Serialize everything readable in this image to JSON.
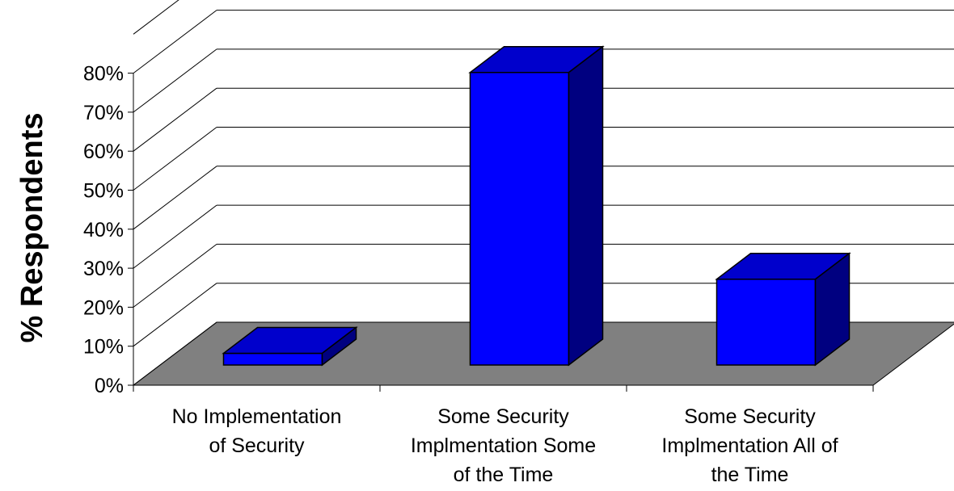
{
  "chart_data": {
    "type": "bar",
    "title": "",
    "xlabel": "",
    "ylabel": "% Respondents",
    "ylim": [
      0,
      80
    ],
    "y_ticks": [
      "0%",
      "10%",
      "20%",
      "30%",
      "40%",
      "50%",
      "60%",
      "70%",
      "80%"
    ],
    "categories": [
      [
        "No Implementation",
        "of Security"
      ],
      [
        "Some Security",
        "Implmentation Some",
        "of the Time"
      ],
      [
        "Some Security",
        "Implmentation All of",
        "the Time"
      ]
    ],
    "values": [
      3,
      75,
      22
    ],
    "style": "3d",
    "grid": true,
    "legend": "none",
    "colors": {
      "bar_front": "#0000FF",
      "bar_top": "#0000CC",
      "bar_side": "#000080",
      "floor": "#808080",
      "outline": "#000000"
    }
  }
}
